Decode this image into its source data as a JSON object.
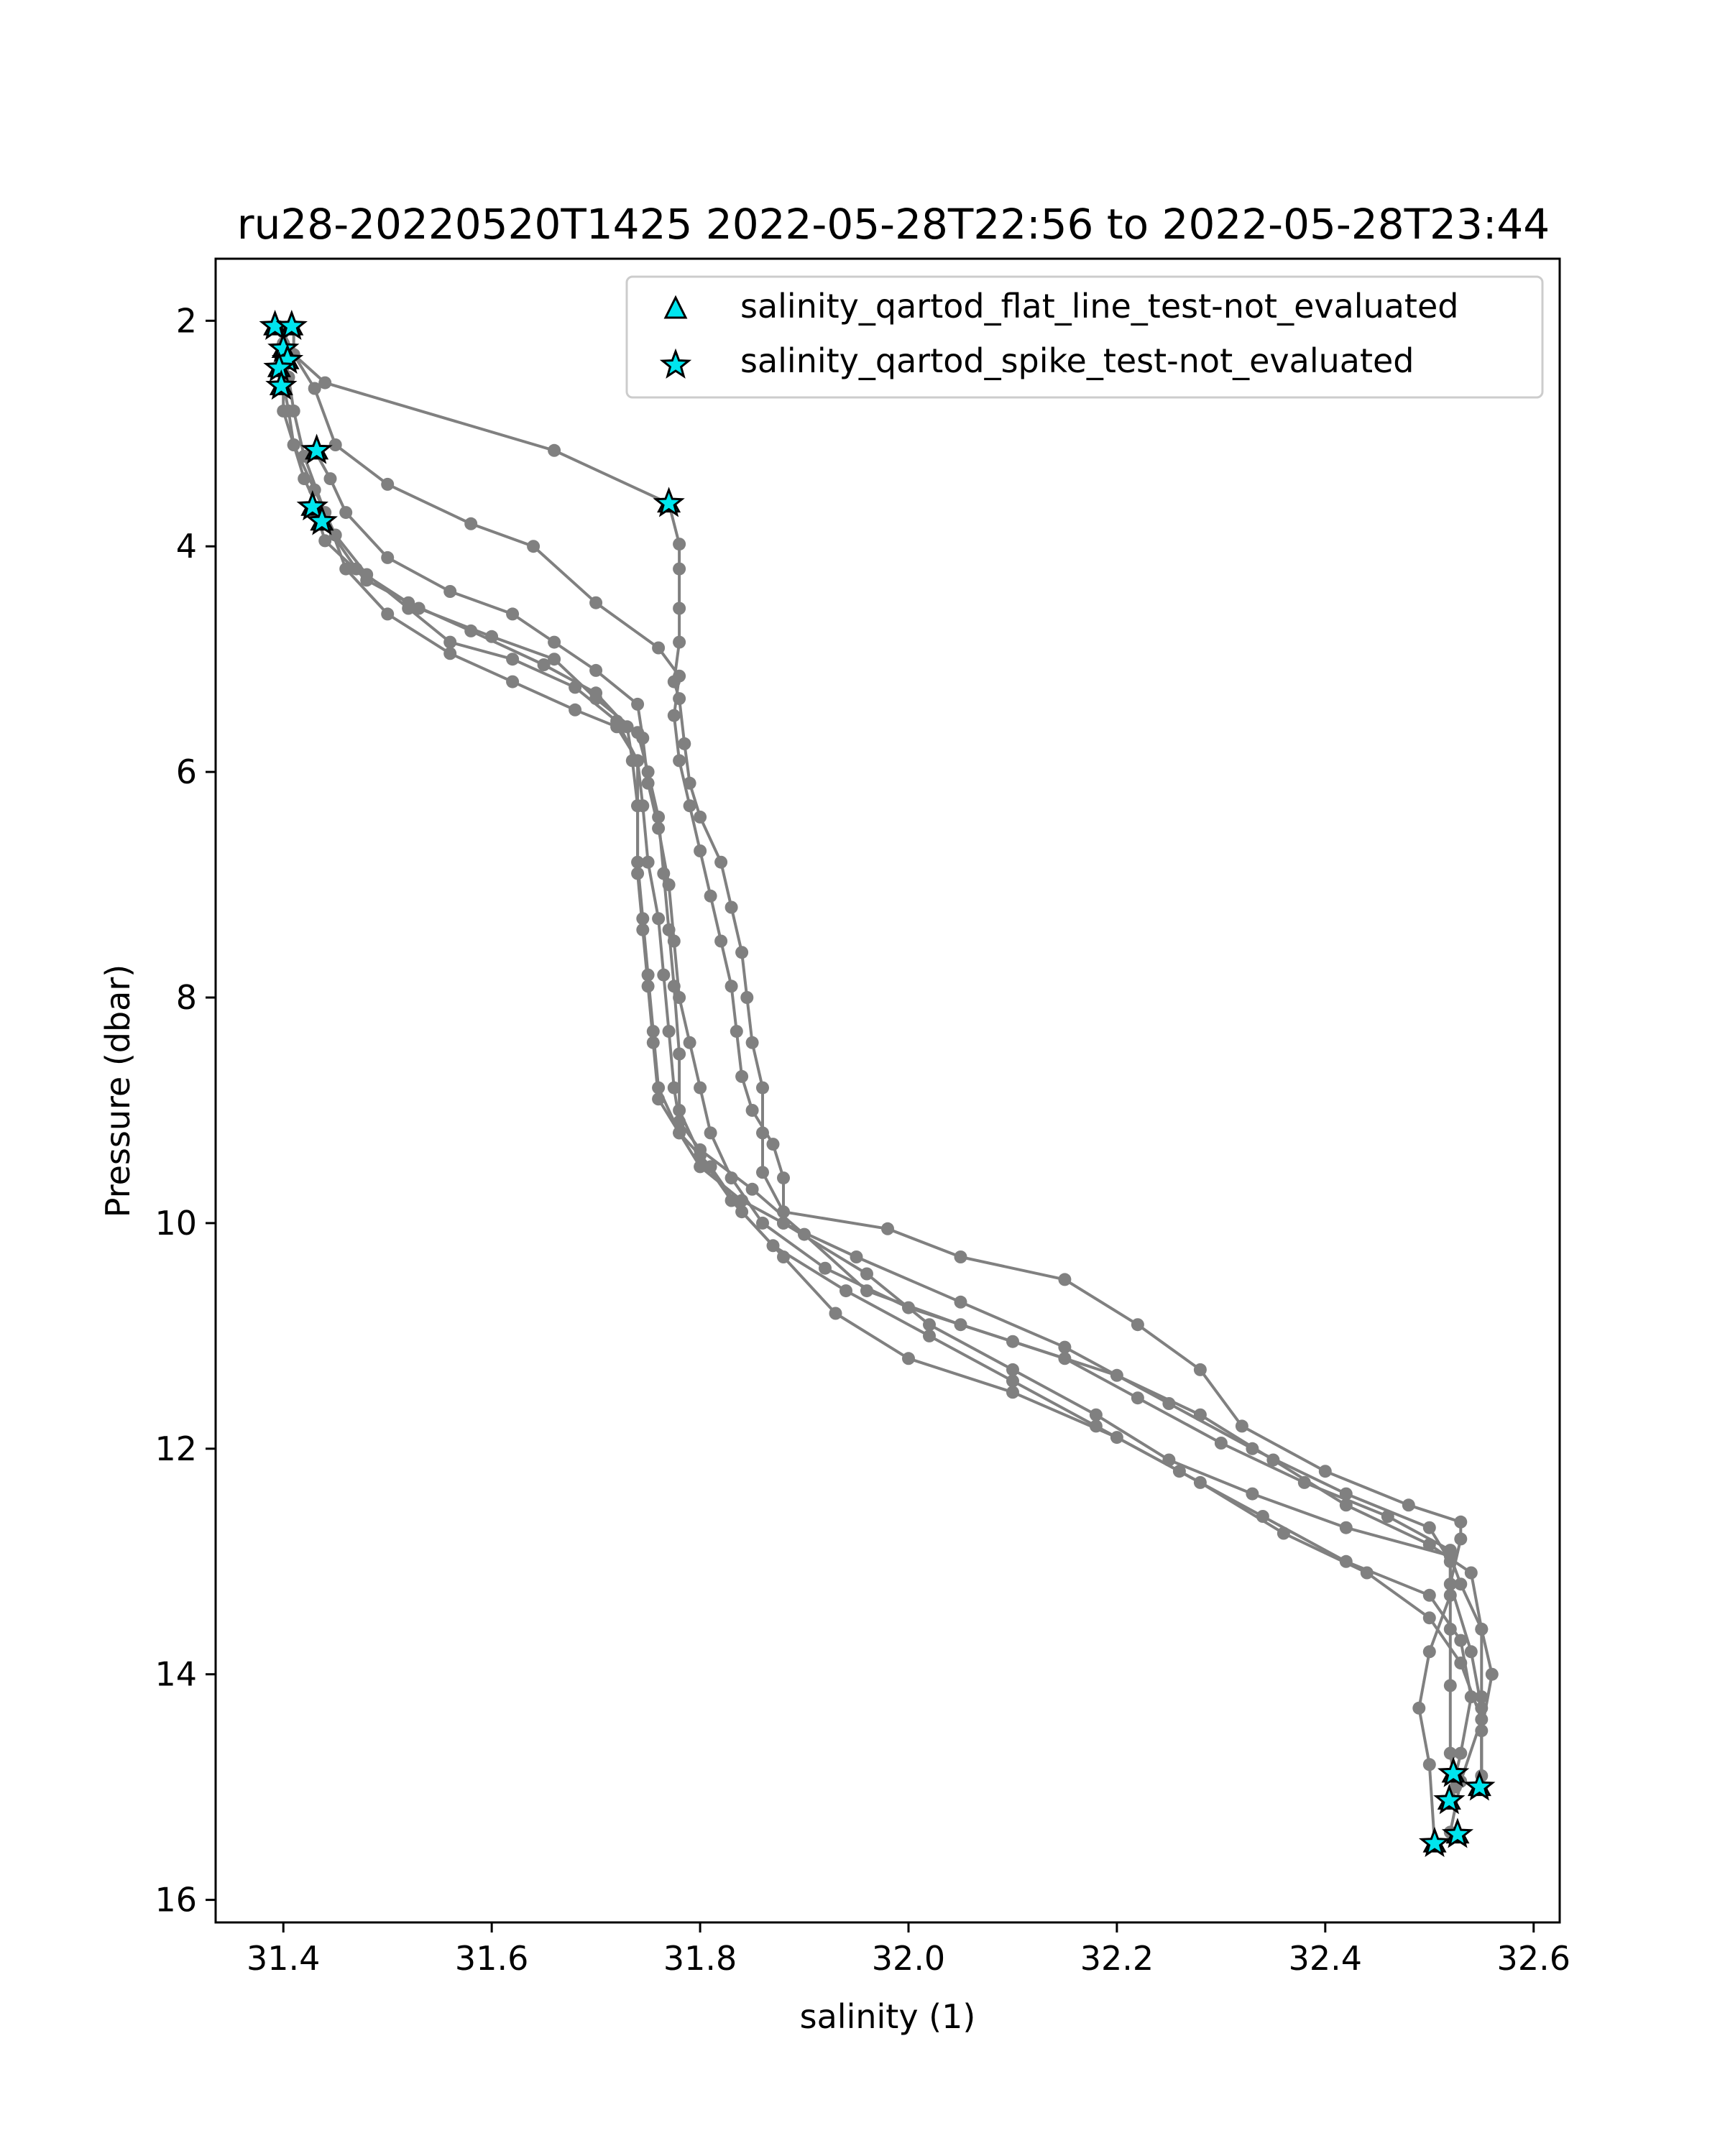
{
  "chart_data": {
    "type": "line",
    "title": "ru28-20220520T1425 2022-05-28T22:56 to 2022-05-28T23:44",
    "xlabel": "salinity (1)",
    "ylabel": "Pressure (dbar)",
    "xlim": [
      31.335,
      32.625
    ],
    "ylim": [
      16.2,
      1.45
    ],
    "y_inverted": true,
    "grid": false,
    "legend_position": "top-right",
    "x_ticks": [
      "31.4",
      "31.6",
      "31.8",
      "32.0",
      "32.2",
      "32.4",
      "32.6"
    ],
    "y_ticks": [
      "2",
      "4",
      "6",
      "8",
      "10",
      "12",
      "14",
      "16"
    ],
    "colors": {
      "profile_line": "#808080",
      "qartod_marker_fill": "#00e5ee",
      "qartod_marker_edge": "#000000"
    },
    "legend": [
      {
        "label": "salinity_qartod_flat_line_test-not_evaluated",
        "marker": "triangle-icon"
      },
      {
        "label": "salinity_qartod_spike_test-not_evaluated",
        "marker": "star-icon"
      }
    ],
    "series": [
      {
        "points": [
          [
            31.395,
            2.05
          ],
          [
            31.4,
            2.2
          ],
          [
            31.405,
            2.5
          ],
          [
            31.41,
            2.8
          ],
          [
            31.42,
            3.2
          ],
          [
            31.44,
            3.7
          ],
          [
            31.46,
            4.2
          ],
          [
            31.5,
            4.6
          ],
          [
            31.56,
            4.95
          ],
          [
            31.62,
            5.2
          ],
          [
            31.68,
            5.45
          ],
          [
            31.72,
            5.6
          ],
          [
            31.74,
            5.9
          ],
          [
            31.74,
            6.3
          ],
          [
            31.74,
            6.8
          ],
          [
            31.745,
            7.3
          ],
          [
            31.75,
            7.8
          ],
          [
            31.755,
            8.3
          ],
          [
            31.76,
            8.8
          ],
          [
            31.78,
            9.2
          ],
          [
            31.8,
            9.5
          ],
          [
            31.84,
            9.8
          ],
          [
            31.88,
            10.0
          ],
          [
            31.95,
            10.3
          ],
          [
            32.05,
            10.7
          ],
          [
            32.15,
            11.1
          ],
          [
            32.25,
            11.6
          ],
          [
            32.33,
            12.0
          ],
          [
            32.42,
            12.4
          ],
          [
            32.5,
            12.7
          ],
          [
            32.52,
            13.0
          ],
          [
            32.52,
            13.6
          ],
          [
            32.52,
            14.1
          ],
          [
            32.52,
            14.7
          ],
          [
            32.525,
            15.0
          ]
        ]
      },
      {
        "points": [
          [
            31.41,
            2.05
          ],
          [
            31.41,
            2.3
          ],
          [
            31.44,
            2.55
          ],
          [
            31.66,
            3.15
          ],
          [
            31.77,
            3.62
          ],
          [
            31.78,
            3.98
          ],
          [
            31.78,
            4.2
          ],
          [
            31.78,
            4.55
          ],
          [
            31.78,
            4.85
          ],
          [
            31.775,
            5.2
          ],
          [
            31.78,
            5.35
          ],
          [
            31.785,
            5.75
          ],
          [
            31.79,
            6.1
          ],
          [
            31.8,
            6.4
          ],
          [
            31.82,
            6.8
          ],
          [
            31.83,
            7.2
          ],
          [
            31.84,
            7.6
          ],
          [
            31.845,
            8.0
          ],
          [
            31.85,
            8.4
          ],
          [
            31.86,
            8.8
          ],
          [
            31.86,
            9.2
          ],
          [
            31.86,
            9.55
          ],
          [
            31.88,
            9.9
          ],
          [
            31.98,
            10.05
          ],
          [
            32.05,
            10.3
          ],
          [
            32.15,
            10.5
          ],
          [
            32.22,
            10.9
          ],
          [
            32.28,
            11.3
          ],
          [
            32.32,
            11.8
          ],
          [
            32.4,
            12.2
          ],
          [
            32.48,
            12.5
          ],
          [
            32.53,
            12.65
          ],
          [
            32.53,
            12.8
          ],
          [
            32.52,
            13.2
          ],
          [
            32.54,
            13.8
          ],
          [
            32.55,
            14.3
          ],
          [
            32.55,
            15.0
          ]
        ]
      },
      {
        "points": [
          [
            31.4,
            2.1
          ],
          [
            31.41,
            2.3
          ],
          [
            31.43,
            2.6
          ],
          [
            31.45,
            3.1
          ],
          [
            31.5,
            3.45
          ],
          [
            31.58,
            3.8
          ],
          [
            31.64,
            4.0
          ],
          [
            31.7,
            4.5
          ],
          [
            31.76,
            4.9
          ],
          [
            31.78,
            5.15
          ],
          [
            31.775,
            5.5
          ],
          [
            31.78,
            5.9
          ],
          [
            31.79,
            6.3
          ],
          [
            31.8,
            6.7
          ],
          [
            31.81,
            7.1
          ],
          [
            31.82,
            7.5
          ],
          [
            31.83,
            7.9
          ],
          [
            31.835,
            8.3
          ],
          [
            31.84,
            8.7
          ],
          [
            31.85,
            9.0
          ],
          [
            31.87,
            9.3
          ],
          [
            31.88,
            9.6
          ],
          [
            31.88,
            10.0
          ],
          [
            31.96,
            10.45
          ],
          [
            32.02,
            10.9
          ],
          [
            32.1,
            11.3
          ],
          [
            32.18,
            11.7
          ],
          [
            32.25,
            12.1
          ],
          [
            32.33,
            12.4
          ],
          [
            32.42,
            12.7
          ],
          [
            32.52,
            12.95
          ],
          [
            32.53,
            13.2
          ],
          [
            32.55,
            13.6
          ],
          [
            32.56,
            14.0
          ],
          [
            32.55,
            14.5
          ],
          [
            32.55,
            15.0
          ]
        ]
      },
      {
        "points": [
          [
            31.4,
            2.4
          ],
          [
            31.4,
            2.8
          ],
          [
            31.41,
            3.1
          ],
          [
            31.43,
            3.5
          ],
          [
            31.45,
            3.9
          ],
          [
            31.48,
            4.25
          ],
          [
            31.52,
            4.55
          ],
          [
            31.56,
            4.85
          ],
          [
            31.62,
            5.0
          ],
          [
            31.68,
            5.25
          ],
          [
            31.72,
            5.55
          ],
          [
            31.74,
            5.9
          ],
          [
            31.745,
            6.3
          ],
          [
            31.75,
            6.8
          ],
          [
            31.76,
            7.3
          ],
          [
            31.765,
            7.8
          ],
          [
            31.77,
            8.3
          ],
          [
            31.775,
            8.8
          ],
          [
            31.78,
            9.1
          ],
          [
            31.8,
            9.35
          ],
          [
            31.85,
            9.7
          ],
          [
            31.9,
            10.1
          ],
          [
            31.96,
            10.6
          ],
          [
            32.05,
            10.9
          ],
          [
            32.15,
            11.2
          ],
          [
            32.22,
            11.55
          ],
          [
            32.3,
            11.95
          ],
          [
            32.38,
            12.3
          ],
          [
            32.46,
            12.6
          ],
          [
            32.52,
            12.9
          ],
          [
            32.52,
            13.3
          ],
          [
            32.5,
            13.8
          ],
          [
            32.49,
            14.3
          ],
          [
            32.5,
            14.8
          ],
          [
            32.505,
            15.5
          ]
        ]
      },
      {
        "points": [
          [
            31.4,
            2.55
          ],
          [
            31.405,
            2.8
          ],
          [
            31.41,
            3.1
          ],
          [
            31.42,
            3.4
          ],
          [
            31.44,
            3.8
          ],
          [
            31.47,
            4.2
          ],
          [
            31.52,
            4.5
          ],
          [
            31.58,
            4.75
          ],
          [
            31.65,
            5.05
          ],
          [
            31.7,
            5.3
          ],
          [
            31.73,
            5.6
          ],
          [
            31.735,
            5.9
          ],
          [
            31.74,
            6.3
          ],
          [
            31.74,
            6.9
          ],
          [
            31.745,
            7.4
          ],
          [
            31.75,
            7.9
          ],
          [
            31.755,
            8.4
          ],
          [
            31.76,
            8.9
          ],
          [
            31.78,
            9.2
          ],
          [
            31.81,
            9.5
          ],
          [
            31.84,
            9.9
          ],
          [
            31.88,
            10.3
          ],
          [
            31.93,
            10.8
          ],
          [
            32.0,
            11.2
          ],
          [
            32.1,
            11.5
          ],
          [
            32.2,
            11.9
          ],
          [
            32.28,
            12.3
          ],
          [
            32.36,
            12.75
          ],
          [
            32.44,
            13.1
          ],
          [
            32.5,
            13.5
          ],
          [
            32.53,
            13.9
          ],
          [
            32.55,
            14.4
          ],
          [
            32.53,
            14.95
          ],
          [
            32.52,
            15.4
          ]
        ]
      },
      {
        "points": [
          [
            31.43,
            3.15
          ],
          [
            31.445,
            3.4
          ],
          [
            31.46,
            3.7
          ],
          [
            31.5,
            4.1
          ],
          [
            31.56,
            4.4
          ],
          [
            31.62,
            4.6
          ],
          [
            31.66,
            4.85
          ],
          [
            31.7,
            5.1
          ],
          [
            31.74,
            5.4
          ],
          [
            31.745,
            5.7
          ],
          [
            31.75,
            6.1
          ],
          [
            31.76,
            6.5
          ],
          [
            31.77,
            7.0
          ],
          [
            31.775,
            7.5
          ],
          [
            31.78,
            8.0
          ],
          [
            31.79,
            8.4
          ],
          [
            31.8,
            8.8
          ],
          [
            31.81,
            9.2
          ],
          [
            31.83,
            9.6
          ],
          [
            31.86,
            10.0
          ],
          [
            31.92,
            10.4
          ],
          [
            32.0,
            10.75
          ],
          [
            32.1,
            11.05
          ],
          [
            32.2,
            11.35
          ],
          [
            32.28,
            11.7
          ],
          [
            32.35,
            12.1
          ],
          [
            32.42,
            12.5
          ],
          [
            32.5,
            12.85
          ],
          [
            32.54,
            13.1
          ],
          [
            32.55,
            13.6
          ],
          [
            32.55,
            14.2
          ],
          [
            32.55,
            14.9
          ],
          [
            32.55,
            15.0
          ]
        ]
      },
      {
        "points": [
          [
            31.43,
            3.65
          ],
          [
            31.44,
            3.95
          ],
          [
            31.48,
            4.3
          ],
          [
            31.53,
            4.55
          ],
          [
            31.6,
            4.8
          ],
          [
            31.66,
            5.0
          ],
          [
            31.7,
            5.35
          ],
          [
            31.74,
            5.65
          ],
          [
            31.75,
            6.0
          ],
          [
            31.76,
            6.4
          ],
          [
            31.765,
            6.9
          ],
          [
            31.77,
            7.4
          ],
          [
            31.775,
            7.9
          ],
          [
            31.78,
            8.5
          ],
          [
            31.78,
            9.0
          ],
          [
            31.8,
            9.4
          ],
          [
            31.83,
            9.8
          ],
          [
            31.87,
            10.2
          ],
          [
            31.94,
            10.6
          ],
          [
            32.02,
            11.0
          ],
          [
            32.1,
            11.4
          ],
          [
            32.18,
            11.8
          ],
          [
            32.26,
            12.2
          ],
          [
            32.34,
            12.6
          ],
          [
            32.42,
            13.0
          ],
          [
            32.5,
            13.3
          ],
          [
            32.53,
            13.7
          ],
          [
            32.54,
            14.2
          ],
          [
            32.53,
            14.7
          ],
          [
            32.52,
            15.1
          ]
        ]
      }
    ],
    "flat_line_not_evaluated_points": [
      [
        31.392,
        2.05
      ],
      [
        31.408,
        2.05
      ],
      [
        31.4,
        2.25
      ],
      [
        31.404,
        2.35
      ],
      [
        31.396,
        2.42
      ],
      [
        31.398,
        2.58
      ],
      [
        31.432,
        3.15
      ],
      [
        31.77,
        3.62
      ],
      [
        31.428,
        3.65
      ],
      [
        31.437,
        3.78
      ],
      [
        32.523,
        14.88
      ],
      [
        32.548,
        15.0
      ],
      [
        32.519,
        15.12
      ],
      [
        32.527,
        15.42
      ],
      [
        32.505,
        15.5
      ]
    ],
    "spike_not_evaluated_points": [
      [
        31.392,
        2.05
      ],
      [
        31.408,
        2.05
      ],
      [
        31.4,
        2.25
      ],
      [
        31.404,
        2.35
      ],
      [
        31.396,
        2.42
      ],
      [
        31.398,
        2.58
      ],
      [
        31.432,
        3.15
      ],
      [
        31.77,
        3.62
      ],
      [
        31.428,
        3.65
      ],
      [
        31.437,
        3.78
      ],
      [
        32.523,
        14.88
      ],
      [
        32.548,
        15.0
      ],
      [
        32.519,
        15.12
      ],
      [
        32.527,
        15.42
      ],
      [
        32.505,
        15.5
      ]
    ]
  }
}
